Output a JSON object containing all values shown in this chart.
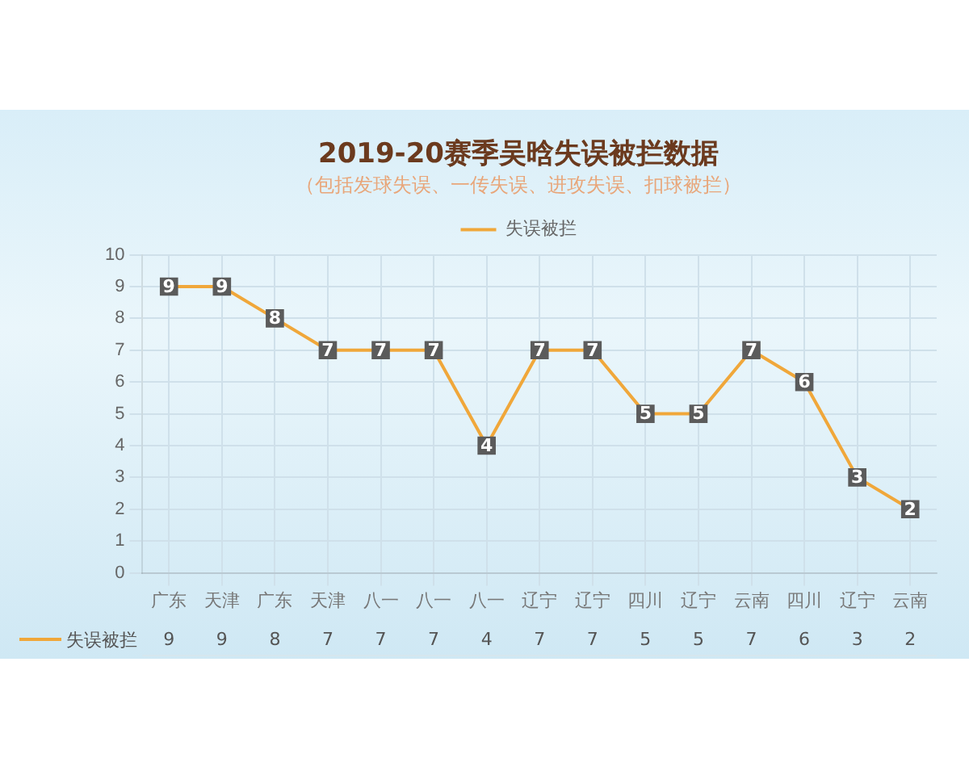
{
  "chart_data": {
    "type": "line",
    "title": "2019-20赛季吴晗失误被拦数据",
    "subtitle": "（包括发球失误、一传失误、进攻失误、扣球被拦）",
    "categories": [
      "广东",
      "天津",
      "广东",
      "天津",
      "八一",
      "八一",
      "八一",
      "辽宁",
      "辽宁",
      "四川",
      "辽宁",
      "云南",
      "四川",
      "辽宁",
      "云南"
    ],
    "series": [
      {
        "name": "失误被拦",
        "color": "#f0a73a",
        "values": [
          9,
          9,
          8,
          7,
          7,
          7,
          4,
          7,
          7,
          5,
          5,
          7,
          6,
          3,
          2
        ],
        "value_labels": [
          "9",
          "9",
          "8",
          "7",
          "7",
          "7",
          "4",
          "7",
          "7",
          "5",
          "5",
          "7",
          "6",
          "3",
          "2"
        ]
      }
    ],
    "ylim": [
      0,
      10
    ],
    "yticks": [
      0,
      1,
      2,
      3,
      4,
      5,
      6,
      7,
      8,
      9,
      10
    ],
    "grid": true,
    "legend": "top",
    "marker": "square",
    "line_style": "solid",
    "annotations": [
      "9",
      "9",
      "8",
      "7",
      "7",
      "7",
      "4",
      "7",
      "7",
      "5",
      "5",
      "7",
      "6",
      "3",
      "2"
    ]
  }
}
